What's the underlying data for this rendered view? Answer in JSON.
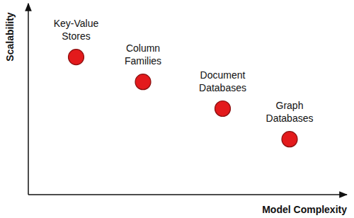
{
  "chart_data": {
    "type": "scatter",
    "x_label": "Model Complexity",
    "y_label": "Scalability",
    "labels": [
      "Key-Value Stores",
      "Column Families",
      "Document Databases",
      "Graph Databases"
    ],
    "x": [
      15,
      36,
      61,
      82
    ],
    "values": [
      72,
      59,
      45,
      29
    ],
    "color": "#e31a1c",
    "xlim": [
      0,
      100
    ],
    "ylim": [
      0,
      100
    ],
    "tick_labels": false,
    "grid": false,
    "marker": "circle"
  }
}
